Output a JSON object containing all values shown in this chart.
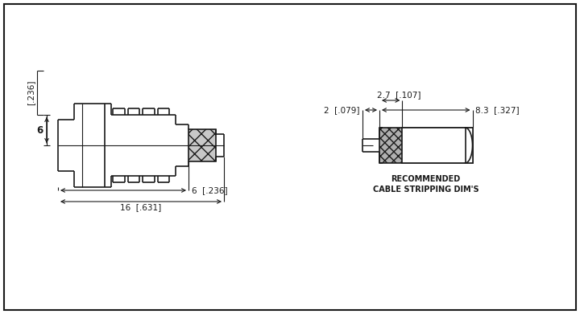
{
  "bg_color": "#ffffff",
  "line_color": "#1a1a1a",
  "dim_label_6_236_horiz": "6  [.236]",
  "dim_label_16_631": "16  [.631]",
  "dim_label_6_vertical": "6",
  "dim_label_6_236_vert": "[.236]",
  "dim_label_2_079": "2  [.079]",
  "dim_label_2_7_107": "2.7  [.107]",
  "dim_label_8_3_327": "8.3  [.327]",
  "rec_label_line1": "RECOMMENDED",
  "rec_label_line2": "CABLE STRIPPING DIM'S",
  "font_size_dim": 7.5,
  "font_size_rec": 7.0
}
